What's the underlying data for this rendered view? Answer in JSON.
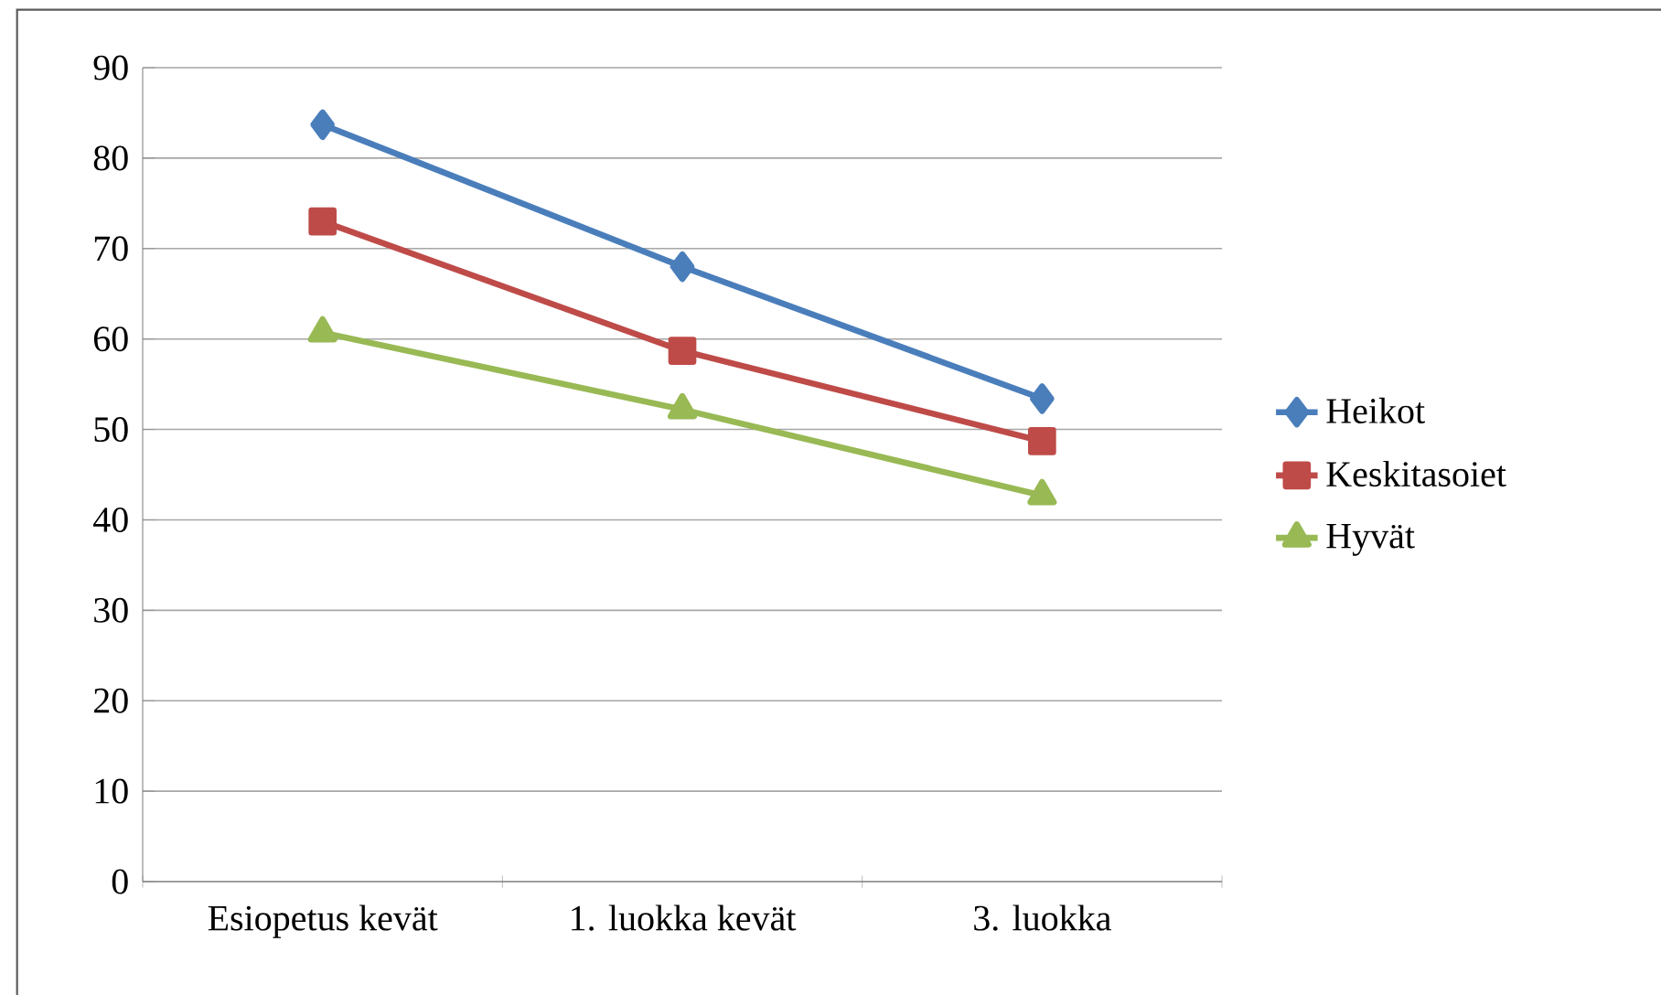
{
  "chart_data": {
    "type": "line",
    "categories": [
      "Esiopetus kevät",
      "1. luokka kevät",
      "3. luokka"
    ],
    "series": [
      {
        "name": "Heikot",
        "color": "#4a7ebb",
        "marker": "diamond",
        "values": [
          83.7,
          68.0,
          53.4
        ]
      },
      {
        "name": "Keskitasoiet",
        "color": "#be4b48",
        "marker": "square",
        "values": [
          73.0,
          58.7,
          48.7
        ]
      },
      {
        "name": "Hyvät",
        "color": "#98b954",
        "marker": "triangle",
        "values": [
          60.7,
          52.2,
          42.7
        ]
      }
    ],
    "ylim": [
      0,
      90
    ],
    "yticks": [
      0,
      10,
      20,
      30,
      40,
      50,
      60,
      70,
      80,
      90
    ],
    "grid": "y",
    "legend": "right"
  }
}
